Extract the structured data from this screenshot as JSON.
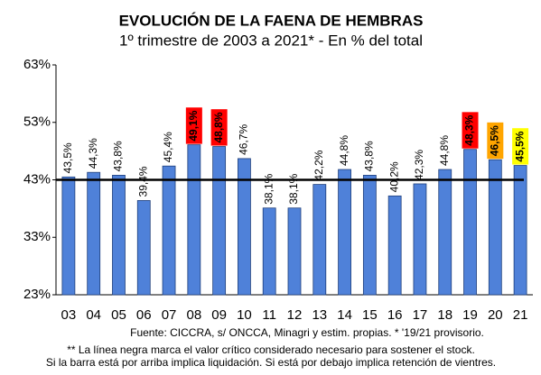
{
  "chart_data": {
    "type": "bar",
    "title": "EVOLUCIÓN DE LA FAENA DE HEMBRAS",
    "subtitle": "1º trimestre de 2003 a 2021* - En % del total",
    "categories": [
      "03",
      "04",
      "05",
      "06",
      "07",
      "08",
      "09",
      "10",
      "11",
      "12",
      "13",
      "14",
      "15",
      "16",
      "17",
      "18",
      "19",
      "20",
      "21"
    ],
    "values": [
      43.5,
      44.3,
      43.8,
      39.4,
      45.4,
      49.1,
      48.8,
      46.7,
      38.1,
      38.1,
      42.2,
      44.8,
      43.8,
      40.2,
      42.3,
      44.8,
      48.3,
      46.5,
      45.5
    ],
    "value_labels": [
      "43,5%",
      "44,3%",
      "43,8%",
      "39,4%",
      "45,4%",
      "49,1%",
      "48,8%",
      "46,7%",
      "38,1%",
      "38,1%",
      "42,2%",
      "44,8%",
      "43,8%",
      "40,2%",
      "42,3%",
      "44,8%",
      "48,3%",
      "46,5%",
      "45,5%"
    ],
    "label_highlights": [
      null,
      null,
      null,
      null,
      null,
      "#ff0000",
      "#ff0000",
      null,
      null,
      null,
      null,
      null,
      null,
      null,
      null,
      null,
      "#ff0000",
      "#ffa500",
      "#ffff00"
    ],
    "color": "#4f81d9",
    "reference_line": 43,
    "ylim": [
      23,
      63
    ],
    "yticks": [
      {
        "value": 23,
        "label": "23%"
      },
      {
        "value": 33,
        "label": "33%"
      },
      {
        "value": 43,
        "label": "43%"
      },
      {
        "value": 53,
        "label": "53%"
      },
      {
        "value": 63,
        "label": "63%"
      }
    ],
    "source": "Fuente: CICCRA, s/ ONCCA, Minagri y estim. propias. * '19/21  provisorio.",
    "notes": [
      "** La línea negra marca el valor crítico considerado necesario para sostener el stock.",
      "Si la barra está por arriba implica liquidación. Si está por debajo implica retención de vientres."
    ]
  }
}
